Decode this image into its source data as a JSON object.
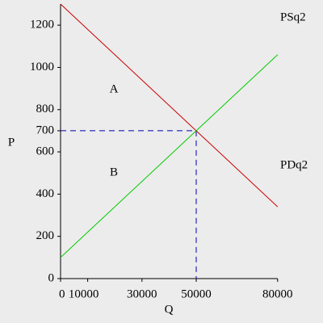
{
  "chart_data": {
    "type": "line",
    "xlabel": "Q",
    "ylabel": "P",
    "x": [
      0,
      80000
    ],
    "series": [
      {
        "name": "PDq2",
        "color": "#cc0000",
        "values": [
          1300,
          340
        ]
      },
      {
        "name": "PSq2",
        "color": "#00cc00",
        "values": [
          100,
          1060
        ]
      }
    ],
    "equilibrium": {
      "x": 50000,
      "y": 700,
      "color": "#0000aa"
    },
    "annotations": [
      "A",
      "B"
    ],
    "xlim": [
      0,
      80000
    ],
    "ylim": [
      0,
      1300
    ],
    "xticks": [
      0,
      10000,
      30000,
      50000,
      80000
    ],
    "yticks": [
      0,
      200,
      400,
      600,
      700,
      800,
      1000,
      1200
    ],
    "grid": false
  }
}
